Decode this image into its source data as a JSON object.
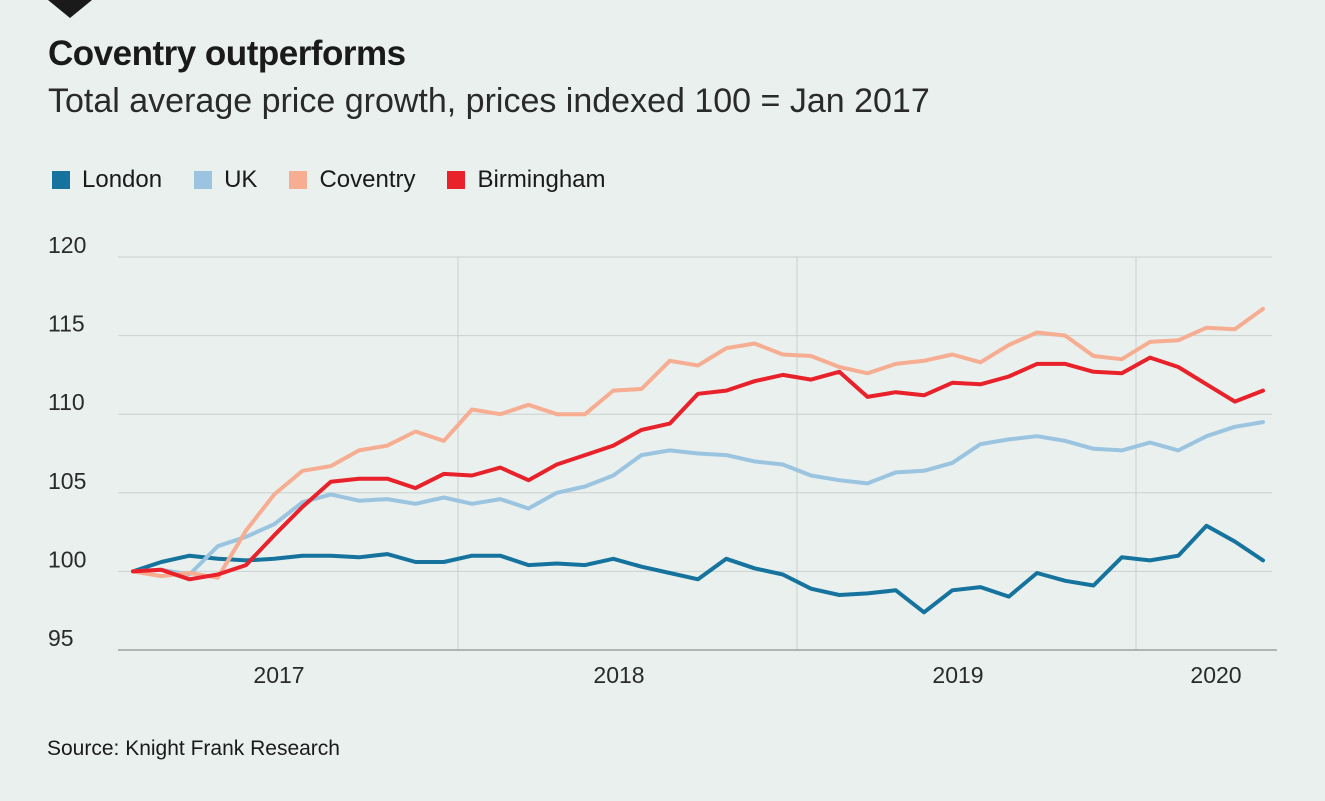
{
  "colors": {
    "background": "#e9f0ed",
    "grid": "#c9d2ce",
    "axis": "#8c9491"
  },
  "chart_data": {
    "type": "line",
    "title": "Coventry outperforms",
    "subtitle": "Total average price growth, prices indexed 100 = Jan 2017",
    "source": "Source: Knight Frank Research",
    "xlabel": "",
    "ylabel": "",
    "ylim": [
      95,
      120
    ],
    "yticks": [
      95,
      100,
      105,
      110,
      115,
      120
    ],
    "year_labels": [
      "2017",
      "2018",
      "2019",
      "2020"
    ],
    "period_count": 48,
    "series": [
      {
        "name": "London",
        "color": "#15739e",
        "values": [
          100,
          100.6,
          101,
          100.8,
          100.7,
          100.8,
          101,
          101,
          100.9,
          101.1,
          100.6,
          100.6,
          101,
          101,
          100.4,
          100.5,
          100.4,
          100.8,
          100.3,
          99.9,
          99.5,
          100.8,
          100.2,
          99.8,
          98.9,
          98.5,
          98.6,
          98.8,
          97.4,
          98.8,
          99,
          98.4,
          99.9,
          99.4,
          99.1,
          100.9,
          100.7,
          101,
          102.9,
          101.9,
          100.7
        ]
      },
      {
        "name": "UK",
        "color": "#9bc4e0",
        "values": [
          100,
          100.1,
          99.8,
          101.6,
          102.2,
          103,
          104.4,
          104.9,
          104.5,
          104.6,
          104.3,
          104.7,
          104.3,
          104.6,
          104,
          105,
          105.4,
          106.1,
          107.4,
          107.7,
          107.5,
          107.4,
          107,
          106.8,
          106.1,
          105.8,
          105.6,
          106.3,
          106.4,
          106.9,
          108.1,
          108.4,
          108.6,
          108.3,
          107.8,
          107.7,
          108.2,
          107.7,
          108.6,
          109.2,
          109.5
        ]
      },
      {
        "name": "Coventry",
        "color": "#f6ad92",
        "values": [
          100,
          99.7,
          99.9,
          99.6,
          102.6,
          104.9,
          106.4,
          106.7,
          107.7,
          108,
          108.9,
          108.3,
          110.3,
          110,
          110.6,
          110,
          110,
          111.5,
          111.6,
          113.4,
          113.1,
          114.2,
          114.5,
          113.8,
          113.7,
          113,
          112.6,
          113.2,
          113.4,
          113.8,
          113.3,
          114.4,
          115.2,
          115,
          113.7,
          113.5,
          114.6,
          114.7,
          115.5,
          115.4,
          116.7
        ]
      },
      {
        "name": "Birmingham",
        "color": "#e8212b",
        "values": [
          100,
          100.1,
          99.5,
          99.8,
          100.4,
          102.3,
          104.1,
          105.7,
          105.9,
          105.9,
          105.3,
          106.2,
          106.1,
          106.6,
          105.8,
          106.8,
          107.4,
          108,
          109,
          109.4,
          111.3,
          111.5,
          112.1,
          112.5,
          112.2,
          112.7,
          111.1,
          111.4,
          111.2,
          112,
          111.9,
          112.4,
          113.2,
          113.2,
          112.7,
          112.6,
          113.6,
          113,
          111.9,
          110.8,
          111.5
        ]
      }
    ]
  }
}
